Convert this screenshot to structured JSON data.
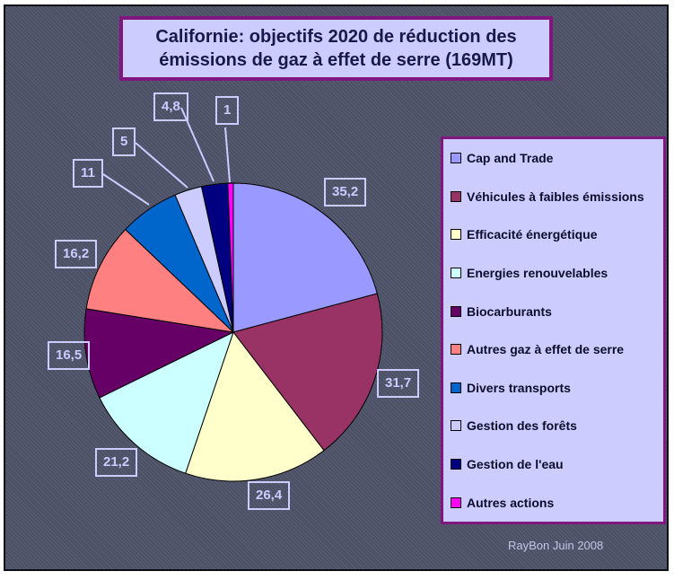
{
  "title": {
    "line1": "Californie: objectifs 2020 de réduction des",
    "line2": "émissions de gaz à effet de serre (169MT)"
  },
  "footer": "RayBon Juin 2008",
  "colors": {
    "panel_background": "#ccccff",
    "panel_border": "#811681",
    "chart_background": "#4b5065",
    "label_text": "#ccccff",
    "title_text": "#191947",
    "legend_text": "#0d0d2b",
    "slice_outline": "#000000"
  },
  "chart_data": {
    "type": "pie",
    "title": "Californie: objectifs 2020 de réduction des émissions de gaz à effet de serre (169MT)",
    "total": 169,
    "unit": "MT",
    "start_angle_deg": 0,
    "direction": "clockwise",
    "legend_position": "right",
    "slices": [
      {
        "label": "Cap and Trade",
        "value": 35.2,
        "display": "35,2",
        "color": "#9999FF"
      },
      {
        "label": "Véhicules à faibles émissions",
        "value": 31.7,
        "display": "31,7",
        "color": "#993366"
      },
      {
        "label": "Efficacité énergétique",
        "value": 26.4,
        "display": "26,4",
        "color": "#FFFFCC"
      },
      {
        "label": "Energies renouvelables",
        "value": 21.2,
        "display": "21,2",
        "color": "#CCFFFF"
      },
      {
        "label": "Biocarburants",
        "value": 16.5,
        "display": "16,5",
        "color": "#660066"
      },
      {
        "label": "Autres gaz à effet de serre",
        "value": 16.2,
        "display": "16,2",
        "color": "#FF8080"
      },
      {
        "label": "Divers transports",
        "value": 11,
        "display": "11",
        "color": "#0066CC"
      },
      {
        "label": "Gestion des forêts",
        "value": 5,
        "display": "5",
        "color": "#CCCCFF"
      },
      {
        "label": "Gestion de l'eau",
        "value": 4.8,
        "display": "4,8",
        "color": "#000080"
      },
      {
        "label": "Autres actions",
        "value": 1,
        "display": "1",
        "color": "#FF00FF"
      }
    ]
  }
}
